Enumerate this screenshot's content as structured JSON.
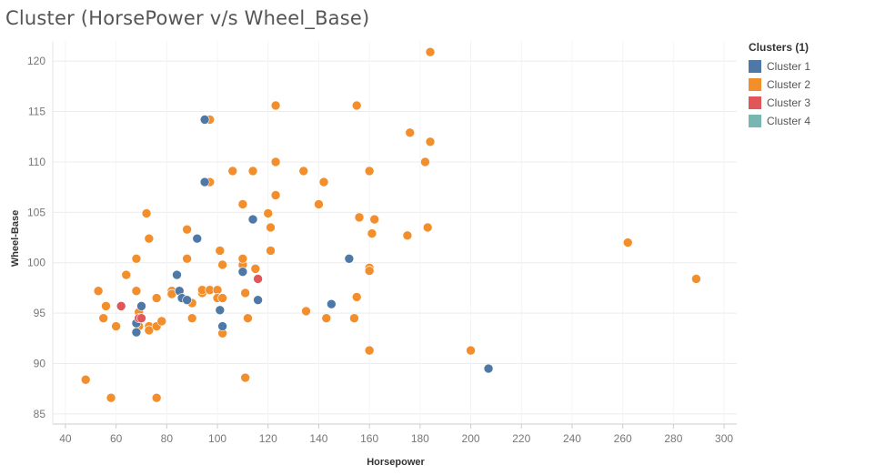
{
  "chart_data": {
    "type": "scatter",
    "title": "Cluster (HorsePower v/s Wheel_Base)",
    "xlabel": "Horsepower",
    "ylabel": "Wheel-Base",
    "xlim": [
      35,
      305
    ],
    "ylim": [
      84,
      122
    ],
    "xticks": [
      "40",
      "60",
      "80",
      "100",
      "120",
      "140",
      "160",
      "180",
      "200",
      "220",
      "240",
      "260",
      "280",
      "300"
    ],
    "yticks": [
      "85",
      "90",
      "95",
      "100",
      "105",
      "110",
      "115",
      "120"
    ],
    "grid": true,
    "legend": {
      "title": "Clusters (1)",
      "position": "right"
    },
    "series": [
      {
        "name": "Cluster 1",
        "color": "#4e79a7",
        "points": [
          [
            95,
            114.2
          ],
          [
            95,
            108.0
          ],
          [
            92,
            102.4
          ],
          [
            114,
            104.3
          ],
          [
            84,
            98.8
          ],
          [
            85,
            97.2
          ],
          [
            86,
            96.5
          ],
          [
            88,
            96.3
          ],
          [
            70,
            95.7
          ],
          [
            68,
            94.0
          ],
          [
            68,
            93.1
          ],
          [
            101,
            95.3
          ],
          [
            102,
            93.7
          ],
          [
            110,
            99.1
          ],
          [
            116,
            96.3
          ],
          [
            145,
            95.9
          ],
          [
            152,
            100.4
          ],
          [
            207,
            89.5
          ]
        ]
      },
      {
        "name": "Cluster 2",
        "color": "#f28e2b",
        "points": [
          [
            184,
            120.9
          ],
          [
            97,
            114.2
          ],
          [
            123,
            115.6
          ],
          [
            155,
            115.6
          ],
          [
            176,
            112.9
          ],
          [
            184,
            112.0
          ],
          [
            182,
            110.0
          ],
          [
            123,
            110.0
          ],
          [
            97,
            108.0
          ],
          [
            106,
            109.1
          ],
          [
            114,
            109.1
          ],
          [
            134,
            109.1
          ],
          [
            142,
            108.0
          ],
          [
            160,
            109.1
          ],
          [
            72,
            104.9
          ],
          [
            110,
            105.8
          ],
          [
            120,
            104.9
          ],
          [
            123,
            106.7
          ],
          [
            140,
            105.8
          ],
          [
            156,
            104.5
          ],
          [
            162,
            104.3
          ],
          [
            121,
            103.5
          ],
          [
            161,
            102.9
          ],
          [
            175,
            102.7
          ],
          [
            183,
            103.5
          ],
          [
            262,
            102.0
          ],
          [
            73,
            102.4
          ],
          [
            88,
            103.3
          ],
          [
            68,
            100.4
          ],
          [
            88,
            100.4
          ],
          [
            101,
            101.2
          ],
          [
            102,
            99.8
          ],
          [
            110,
            99.8
          ],
          [
            110,
            100.4
          ],
          [
            115,
            99.4
          ],
          [
            121,
            101.2
          ],
          [
            160,
            99.5
          ],
          [
            160,
            99.2
          ],
          [
            289,
            98.4
          ],
          [
            64,
            98.8
          ],
          [
            53,
            97.2
          ],
          [
            68,
            97.2
          ],
          [
            76,
            96.5
          ],
          [
            82,
            97.2
          ],
          [
            82,
            96.9
          ],
          [
            90,
            96.0
          ],
          [
            94,
            97.0
          ],
          [
            94,
            97.3
          ],
          [
            97,
            97.3
          ],
          [
            100,
            97.3
          ],
          [
            100,
            96.5
          ],
          [
            102,
            96.5
          ],
          [
            111,
            97.0
          ],
          [
            155,
            96.6
          ],
          [
            56,
            95.7
          ],
          [
            55,
            94.5
          ],
          [
            60,
            93.7
          ],
          [
            69,
            95.1
          ],
          [
            70,
            94.5
          ],
          [
            69,
            93.7
          ],
          [
            73,
            93.7
          ],
          [
            73,
            93.3
          ],
          [
            76,
            93.7
          ],
          [
            78,
            94.2
          ],
          [
            90,
            94.5
          ],
          [
            102,
            93.0
          ],
          [
            112,
            94.5
          ],
          [
            135,
            95.2
          ],
          [
            143,
            94.5
          ],
          [
            154,
            94.5
          ],
          [
            48,
            88.4
          ],
          [
            58,
            86.6
          ],
          [
            76,
            86.6
          ],
          [
            111,
            88.6
          ],
          [
            160,
            91.3
          ],
          [
            200,
            91.3
          ]
        ]
      },
      {
        "name": "Cluster 3",
        "color": "#e15759",
        "points": [
          [
            62,
            95.7
          ],
          [
            69,
            94.5
          ],
          [
            70,
            94.5
          ],
          [
            116,
            98.4
          ]
        ]
      },
      {
        "name": "Cluster 4",
        "color": "#76b7b2",
        "points": []
      }
    ]
  }
}
